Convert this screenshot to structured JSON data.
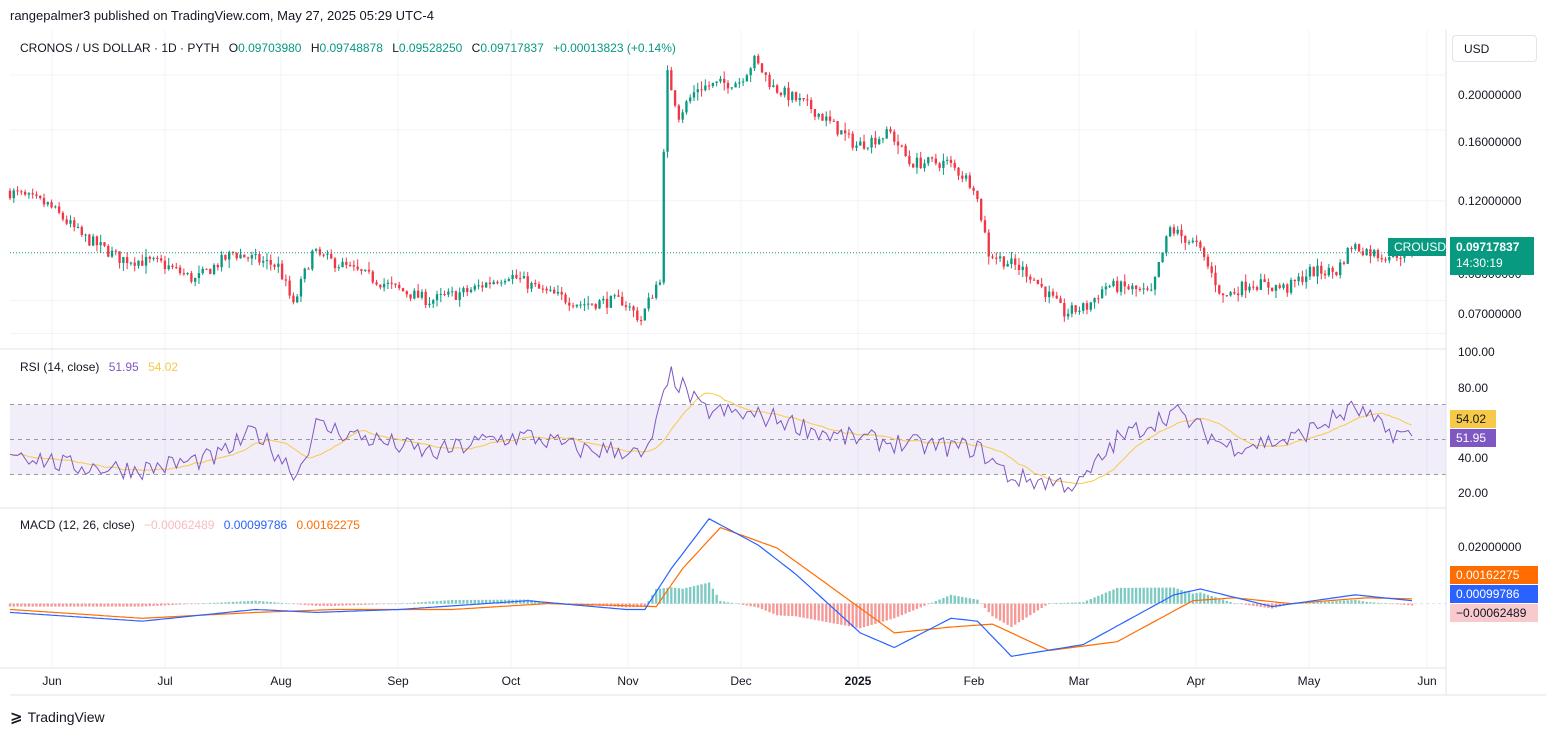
{
  "caption": "rangepalmer3 published on TradingView.com, May 27, 2025 05:29 UTC-4",
  "symbol": "CRONOS / US DOLLAR · 1D · PYTH",
  "ohlc": {
    "o_label": "O",
    "o": "0.09703980",
    "h_label": "H",
    "h": "0.09748878",
    "l_label": "L",
    "l": "0.09528250",
    "c_label": "C",
    "c": "0.09717837",
    "change": "+0.00013823 (+0.14%)"
  },
  "currency_button": "USD",
  "price_axis": [
    "0.20000000",
    "0.16000000",
    "0.12000000",
    "0.08000000",
    "0.07000000"
  ],
  "last_price": {
    "symbol_tag": "CROUSD",
    "value": "0.09717837",
    "countdown": "14:30:19"
  },
  "rsi": {
    "label": "RSI (14, close)",
    "value": "51.95",
    "ma": "54.02",
    "axis": [
      "100.00",
      "80.00",
      "40.00",
      "20.00"
    ]
  },
  "macd": {
    "label": "MACD (12, 26, close)",
    "hist": "−0.00062489",
    "macd": "0.00099786",
    "signal": "0.00162275",
    "axis": [
      "0.02000000"
    ]
  },
  "time_axis": [
    "Jun",
    "Jul",
    "Aug",
    "Sep",
    "Oct",
    "Nov",
    "Dec",
    "2025",
    "Feb",
    "Mar",
    "Apr",
    "May",
    "Jun"
  ],
  "footer": "TradingView",
  "colors": {
    "up": "#089981",
    "down": "#f23645",
    "rsi": "#7e57c2",
    "rsi_ma": "#f7c948",
    "macd": "#2962ff",
    "signal": "#ff6d00"
  },
  "chart_data": {
    "type": "candlestick",
    "x_range": [
      "2024-05-21",
      "2025-06-05"
    ],
    "y_scale": "log",
    "ylim": [
      0.066,
      0.24
    ],
    "anchors": [
      [
        "2024-05-21",
        0.125
      ],
      [
        "2024-06-01",
        0.118
      ],
      [
        "2024-06-10",
        0.104
      ],
      [
        "2024-06-20",
        0.095
      ],
      [
        "2024-07-01",
        0.093
      ],
      [
        "2024-07-10",
        0.087
      ],
      [
        "2024-07-20",
        0.097
      ],
      [
        "2024-08-01",
        0.092
      ],
      [
        "2024-08-05",
        0.078
      ],
      [
        "2024-08-10",
        0.097
      ],
      [
        "2024-08-20",
        0.091
      ],
      [
        "2024-09-01",
        0.084
      ],
      [
        "2024-09-10",
        0.08
      ],
      [
        "2024-09-20",
        0.083
      ],
      [
        "2024-10-01",
        0.089
      ],
      [
        "2024-10-10",
        0.083
      ],
      [
        "2024-10-20",
        0.079
      ],
      [
        "2024-10-31",
        0.08
      ],
      [
        "2024-11-05",
        0.074
      ],
      [
        "2024-11-10",
        0.088
      ],
      [
        "2024-11-12",
        0.2
      ],
      [
        "2024-11-15",
        0.17
      ],
      [
        "2024-11-20",
        0.19
      ],
      [
        "2024-12-01",
        0.195
      ],
      [
        "2024-12-05",
        0.212
      ],
      [
        "2024-12-10",
        0.19
      ],
      [
        "2024-12-20",
        0.175
      ],
      [
        "2025-01-01",
        0.15
      ],
      [
        "2025-01-10",
        0.158
      ],
      [
        "2025-01-15",
        0.14
      ],
      [
        "2025-01-25",
        0.14
      ],
      [
        "2025-02-01",
        0.128
      ],
      [
        "2025-02-05",
        0.097
      ],
      [
        "2025-02-15",
        0.09
      ],
      [
        "2025-02-25",
        0.076
      ],
      [
        "2025-03-03",
        0.078
      ],
      [
        "2025-03-08",
        0.085
      ],
      [
        "2025-03-15",
        0.084
      ],
      [
        "2025-03-20",
        0.082
      ],
      [
        "2025-03-25",
        0.107
      ],
      [
        "2025-04-01",
        0.1
      ],
      [
        "2025-04-08",
        0.081
      ],
      [
        "2025-04-15",
        0.086
      ],
      [
        "2025-04-25",
        0.084
      ],
      [
        "2025-05-01",
        0.09
      ],
      [
        "2025-05-08",
        0.09
      ],
      [
        "2025-05-12",
        0.1
      ],
      [
        "2025-05-20",
        0.096
      ],
      [
        "2025-05-27",
        0.0972
      ]
    ],
    "last": {
      "o": 0.0970398,
      "h": 0.09748878,
      "l": 0.0952825,
      "c": 0.09717837
    },
    "rsi_overbought": 70,
    "rsi_oversold": 30,
    "rsi_anchors": [
      [
        "2024-05-21",
        44
      ],
      [
        "2024-06-05",
        35
      ],
      [
        "2024-06-25",
        33
      ],
      [
        "2024-07-15",
        40
      ],
      [
        "2024-07-25",
        55
      ],
      [
        "2024-08-05",
        30
      ],
      [
        "2024-08-10",
        58
      ],
      [
        "2024-08-25",
        50
      ],
      [
        "2024-09-10",
        42
      ],
      [
        "2024-09-25",
        50
      ],
      [
        "2024-10-05",
        52
      ],
      [
        "2024-10-20",
        44
      ],
      [
        "2024-10-31",
        44
      ],
      [
        "2024-11-05",
        39
      ],
      [
        "2024-11-12",
        87
      ],
      [
        "2024-11-20",
        67
      ],
      [
        "2024-12-10",
        62
      ],
      [
        "2024-12-25",
        52
      ],
      [
        "2025-01-15",
        47
      ],
      [
        "2025-02-01",
        45
      ],
      [
        "2025-02-10",
        28
      ],
      [
        "2025-02-28",
        24
      ],
      [
        "2025-03-10",
        50
      ],
      [
        "2025-03-25",
        66
      ],
      [
        "2025-04-08",
        46
      ],
      [
        "2025-04-25",
        50
      ],
      [
        "2025-05-12",
        68
      ],
      [
        "2025-05-20",
        55
      ],
      [
        "2025-05-27",
        51.95
      ]
    ],
    "macd_anchors": [
      [
        "2024-05-21",
        -0.003
      ],
      [
        "2024-06-25",
        -0.006
      ],
      [
        "2024-07-25",
        -0.002
      ],
      [
        "2024-08-10",
        -0.003
      ],
      [
        "2024-09-01",
        -0.002
      ],
      [
        "2024-10-05",
        0.001
      ],
      [
        "2024-10-31",
        -0.002
      ],
      [
        "2024-11-05",
        -0.002
      ],
      [
        "2024-11-12",
        0.012
      ],
      [
        "2024-11-22",
        0.029
      ],
      [
        "2024-12-05",
        0.02
      ],
      [
        "2024-12-15",
        0.01
      ],
      [
        "2025-01-01",
        -0.01
      ],
      [
        "2025-01-10",
        -0.015
      ],
      [
        "2025-01-25",
        -0.005
      ],
      [
        "2025-02-01",
        -0.006
      ],
      [
        "2025-02-10",
        -0.018
      ],
      [
        "2025-03-01",
        -0.014
      ],
      [
        "2025-03-25",
        0.003
      ],
      [
        "2025-04-01",
        0.005
      ],
      [
        "2025-04-20",
        -0.001
      ],
      [
        "2025-05-12",
        0.003
      ],
      [
        "2025-05-27",
        0.00099786
      ]
    ],
    "signal_anchors": [
      [
        "2024-05-21",
        -0.002
      ],
      [
        "2024-06-25",
        -0.005
      ],
      [
        "2024-07-25",
        -0.003
      ],
      [
        "2024-08-15",
        -0.002
      ],
      [
        "2024-09-15",
        -0.002
      ],
      [
        "2024-10-10",
        0.0
      ],
      [
        "2024-11-08",
        -0.001
      ],
      [
        "2024-11-15",
        0.012
      ],
      [
        "2024-11-25",
        0.026
      ],
      [
        "2024-12-10",
        0.019
      ],
      [
        "2024-12-25",
        0.005
      ],
      [
        "2025-01-10",
        -0.01
      ],
      [
        "2025-01-25",
        -0.008
      ],
      [
        "2025-02-05",
        -0.007
      ],
      [
        "2025-02-20",
        -0.016
      ],
      [
        "2025-03-10",
        -0.013
      ],
      [
        "2025-03-30",
        0.001
      ],
      [
        "2025-04-10",
        0.002
      ],
      [
        "2025-04-25",
        0.0
      ],
      [
        "2025-05-15",
        0.002
      ],
      [
        "2025-05-27",
        0.00162275
      ]
    ],
    "macd_ylim": [
      -0.022,
      0.032
    ]
  }
}
